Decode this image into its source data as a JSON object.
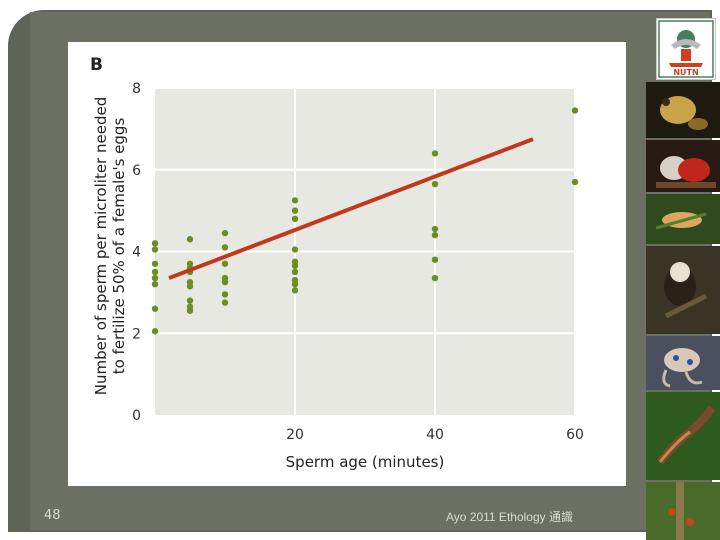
{
  "slide": {
    "page_number": "48",
    "footer_text": "Ayo 2011 Ethology 通識",
    "logo_text": "NUTN"
  },
  "chart_data": {
    "type": "scatter",
    "panel_label": "B",
    "xlabel": "Sperm age (minutes)",
    "ylabel_line1": "Number of sperm per microliter needed",
    "ylabel_line2": "to fertilize 50% of a female's eggs",
    "xlim": [
      0,
      60
    ],
    "ylim": [
      0,
      8
    ],
    "x_ticks": [
      20,
      40,
      60
    ],
    "y_ticks": [
      0,
      2,
      4,
      6,
      8
    ],
    "grid": true,
    "point_color": "#6b8e23",
    "line_color": "#c0391b",
    "points": [
      [
        0,
        2.05
      ],
      [
        0,
        2.6
      ],
      [
        0,
        3.2
      ],
      [
        0,
        3.35
      ],
      [
        0,
        3.5
      ],
      [
        0,
        3.7
      ],
      [
        0,
        4.05
      ],
      [
        0,
        4.2
      ],
      [
        5,
        2.55
      ],
      [
        5,
        2.65
      ],
      [
        5,
        2.8
      ],
      [
        5,
        3.15
      ],
      [
        5,
        3.25
      ],
      [
        5,
        3.5
      ],
      [
        5,
        3.6
      ],
      [
        5,
        3.7
      ],
      [
        5,
        4.3
      ],
      [
        10,
        2.75
      ],
      [
        10,
        2.95
      ],
      [
        10,
        3.25
      ],
      [
        10,
        3.35
      ],
      [
        10,
        3.7
      ],
      [
        10,
        4.1
      ],
      [
        10,
        4.45
      ],
      [
        20,
        3.05
      ],
      [
        20,
        3.2
      ],
      [
        20,
        3.3
      ],
      [
        20,
        3.5
      ],
      [
        20,
        3.65
      ],
      [
        20,
        3.75
      ],
      [
        20,
        4.05
      ],
      [
        20,
        4.8
      ],
      [
        20,
        5.0
      ],
      [
        20,
        5.25
      ],
      [
        40,
        3.35
      ],
      [
        40,
        3.8
      ],
      [
        40,
        4.4
      ],
      [
        40,
        4.55
      ],
      [
        40,
        5.65
      ],
      [
        40,
        6.4
      ],
      [
        60,
        5.7
      ],
      [
        60,
        7.45
      ]
    ],
    "fit_line": [
      [
        2,
        3.35
      ],
      [
        54,
        6.75
      ]
    ]
  }
}
